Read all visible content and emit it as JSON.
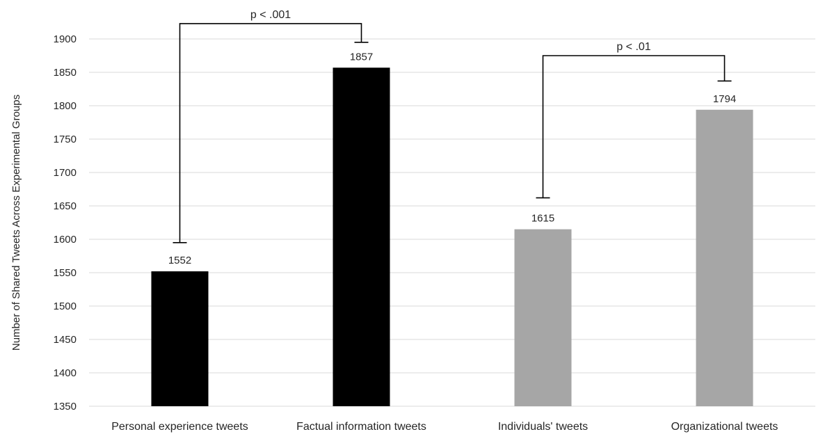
{
  "chart_data": {
    "type": "bar",
    "title": "",
    "xlabel": "",
    "ylabel": "Number of Shared Tweets Across Experimental Groups",
    "ylim": [
      1350,
      1900
    ],
    "ytick_step": 50,
    "yticks": [
      "1350",
      "1400",
      "1450",
      "1500",
      "1550",
      "1600",
      "1650",
      "1700",
      "1750",
      "1800",
      "1850",
      "1900"
    ],
    "grid": true,
    "legend": "none",
    "categories": [
      "Personal experience tweets",
      "Factual information tweets",
      "Individuals' tweets",
      "Organizational tweets"
    ],
    "values": [
      1552,
      1857,
      1615,
      1794
    ],
    "data_labels": [
      "1552",
      "1857",
      "1615",
      "1794"
    ],
    "bar_colors": [
      "#000000",
      "#000000",
      "#a6a6a6",
      "#a6a6a6"
    ],
    "grid_color": "#d9d9d9",
    "significance": [
      {
        "from": 0,
        "to": 1,
        "label": "p < .001",
        "from_value": 1595,
        "to_value": 1895,
        "top_value": 1923
      },
      {
        "from": 2,
        "to": 3,
        "label": "p < .01",
        "from_value": 1662,
        "to_value": 1837,
        "top_value": 1875
      }
    ]
  }
}
